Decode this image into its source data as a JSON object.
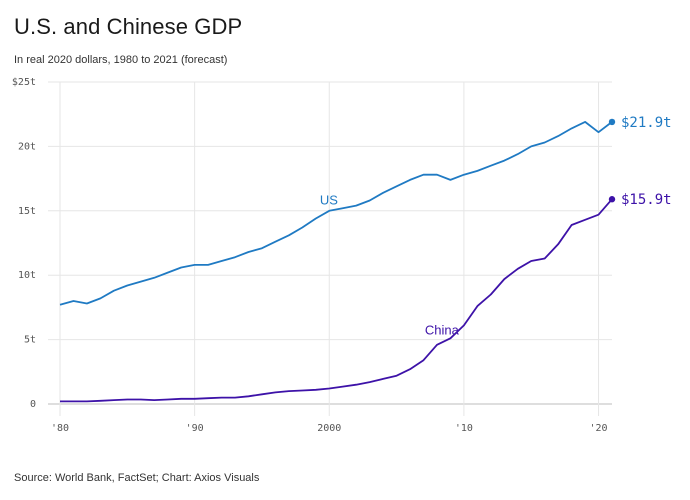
{
  "header": {
    "title": "U.S. and Chinese GDP",
    "subtitle": "In real 2020 dollars, 1980 to 2021 (forecast)"
  },
  "footer": {
    "source": "Source: World Bank, FactSet; Chart: Axios Visuals"
  },
  "chart_data": {
    "type": "line",
    "title": "U.S. and Chinese GDP",
    "subtitle": "In real 2020 dollars, 1980 to 2021 (forecast)",
    "x": [
      1980,
      1981,
      1982,
      1983,
      1984,
      1985,
      1986,
      1987,
      1988,
      1989,
      1990,
      1991,
      1992,
      1993,
      1994,
      1995,
      1996,
      1997,
      1998,
      1999,
      2000,
      2001,
      2002,
      2003,
      2004,
      2005,
      2006,
      2007,
      2008,
      2009,
      2010,
      2011,
      2012,
      2013,
      2014,
      2015,
      2016,
      2017,
      2018,
      2019,
      2020,
      2021
    ],
    "xlim": [
      1980,
      2021
    ],
    "ylim": [
      0,
      25
    ],
    "xticks": [
      1980,
      1990,
      2000,
      2010,
      2020
    ],
    "xtick_labels": [
      "'80",
      "'90",
      "2000",
      "'10",
      "'20"
    ],
    "yticks": [
      0,
      5,
      10,
      15,
      20,
      25
    ],
    "ytick_labels": [
      "0",
      "5t",
      "10t",
      "15t",
      "20t",
      "$25t"
    ],
    "grid": true,
    "series": [
      {
        "name": "US",
        "color": "#1f7ac3",
        "values": [
          7.7,
          8.0,
          7.8,
          8.2,
          8.8,
          9.2,
          9.5,
          9.8,
          10.2,
          10.6,
          10.8,
          10.8,
          11.1,
          11.4,
          11.8,
          12.1,
          12.6,
          13.1,
          13.7,
          14.4,
          15.0,
          15.2,
          15.4,
          15.8,
          16.4,
          16.9,
          17.4,
          17.8,
          17.8,
          17.4,
          17.8,
          18.1,
          18.5,
          18.9,
          19.4,
          20.0,
          20.3,
          20.8,
          21.4,
          21.9,
          21.1,
          21.9
        ],
        "end_label": "$21.9t"
      },
      {
        "name": "China",
        "color": "#3d12a8",
        "values": [
          0.2,
          0.2,
          0.2,
          0.25,
          0.3,
          0.35,
          0.35,
          0.3,
          0.35,
          0.4,
          0.4,
          0.45,
          0.5,
          0.5,
          0.6,
          0.75,
          0.9,
          1.0,
          1.05,
          1.1,
          1.2,
          1.35,
          1.5,
          1.7,
          1.95,
          2.2,
          2.7,
          3.4,
          4.6,
          5.1,
          6.1,
          7.6,
          8.5,
          9.7,
          10.5,
          11.1,
          11.3,
          12.4,
          13.9,
          14.3,
          14.7,
          15.9
        ],
        "end_label": "$15.9t"
      }
    ]
  }
}
